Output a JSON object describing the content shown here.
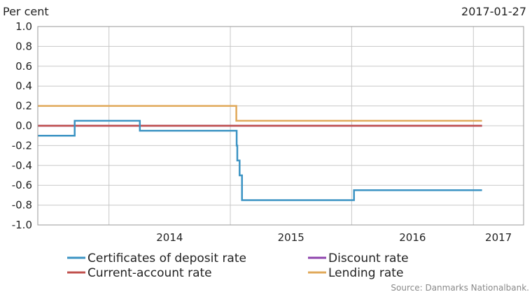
{
  "chart_data": {
    "type": "line",
    "unit_label": "Per cent",
    "date_label": "2017-01-27",
    "source": "Source: Danmarks  Nationalbank.",
    "y_ticks": [
      "1.0",
      "0.8",
      "0.6",
      "0.4",
      "0.2",
      "0.0",
      "-0.2",
      "-0.4",
      "-0.6",
      "-0.8",
      "-1.0"
    ],
    "x_labels": [
      "2014",
      "2015",
      "2016",
      "2017"
    ],
    "ylim": [
      -1.0,
      1.0
    ],
    "xlim": [
      "2013-06-01",
      "2017-06-01"
    ],
    "grid": true,
    "legend_position": "bottom",
    "series": [
      {
        "name": "Certificates of deposit rate",
        "color": "#3b93c3",
        "step": true,
        "points": [
          [
            "2013-06-01",
            -0.1
          ],
          [
            "2013-09-20",
            -0.1
          ],
          [
            "2013-09-20",
            0.05
          ],
          [
            "2014-04-04",
            0.05
          ],
          [
            "2014-04-04",
            -0.05
          ],
          [
            "2014-09-05",
            -0.05
          ],
          [
            "2014-09-05",
            -0.05
          ],
          [
            "2015-01-20",
            -0.05
          ],
          [
            "2015-01-20",
            -0.2
          ],
          [
            "2015-01-22",
            -0.2
          ],
          [
            "2015-01-22",
            -0.35
          ],
          [
            "2015-01-29",
            -0.35
          ],
          [
            "2015-01-29",
            -0.5
          ],
          [
            "2015-02-05",
            -0.5
          ],
          [
            "2015-02-05",
            -0.75
          ],
          [
            "2016-01-08",
            -0.75
          ],
          [
            "2016-01-08",
            -0.65
          ],
          [
            "2017-01-27",
            -0.65
          ]
        ]
      },
      {
        "name": "Current-account rate",
        "color": "#c0504d",
        "step": true,
        "points": [
          [
            "2013-06-01",
            0.0
          ],
          [
            "2017-01-27",
            0.0
          ]
        ]
      },
      {
        "name": "Discount rate",
        "color": "#8e44ad",
        "step": true,
        "points": [
          [
            "2013-06-01",
            0.0
          ],
          [
            "2017-01-27",
            0.0
          ]
        ]
      },
      {
        "name": "Lending rate",
        "color": "#e0a95a",
        "step": true,
        "points": [
          [
            "2013-06-01",
            0.2
          ],
          [
            "2015-01-19",
            0.2
          ],
          [
            "2015-01-19",
            0.05
          ],
          [
            "2017-01-27",
            0.05
          ]
        ]
      }
    ],
    "legend_order": [
      "Certificates of deposit rate",
      "Discount rate",
      "Current-account rate",
      "Lending rate"
    ]
  }
}
